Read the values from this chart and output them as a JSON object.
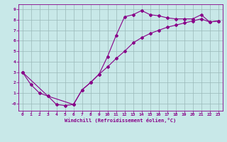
{
  "xlabel": "Windchill (Refroidissement éolien,°C)",
  "xlim": [
    -0.5,
    23.5
  ],
  "ylim": [
    -0.7,
    9.5
  ],
  "xticks": [
    0,
    1,
    2,
    3,
    4,
    5,
    6,
    7,
    8,
    9,
    10,
    11,
    12,
    13,
    14,
    15,
    16,
    17,
    18,
    19,
    20,
    21,
    22,
    23
  ],
  "yticks": [
    0,
    1,
    2,
    3,
    4,
    5,
    6,
    7,
    8,
    9
  ],
  "ytick_labels": [
    "-0",
    "1",
    "2",
    "3",
    "4",
    "5",
    "6",
    "7",
    "8",
    "9"
  ],
  "bg_color": "#c8e8e8",
  "line_color": "#880088",
  "curve1_x": [
    0,
    1,
    2,
    3,
    4,
    5,
    6,
    7,
    8,
    9,
    10,
    11,
    12,
    13,
    14,
    15,
    16,
    17,
    18,
    19,
    20,
    21,
    22,
    23
  ],
  "curve1_y": [
    3.0,
    1.8,
    1.0,
    0.7,
    -0.1,
    -0.2,
    -0.1,
    1.3,
    2.0,
    2.8,
    4.5,
    6.5,
    8.3,
    8.5,
    8.9,
    8.5,
    8.4,
    8.2,
    8.1,
    8.1,
    8.1,
    8.5,
    7.8,
    7.9
  ],
  "curve2_x": [
    0,
    3,
    6,
    7,
    8,
    9,
    10,
    11,
    12,
    13,
    14,
    15,
    16,
    17,
    18,
    19,
    20,
    21,
    22,
    23
  ],
  "curve2_y": [
    3.0,
    0.7,
    -0.1,
    1.3,
    2.0,
    2.8,
    3.5,
    4.3,
    5.0,
    5.8,
    6.3,
    6.7,
    7.0,
    7.3,
    7.5,
    7.7,
    7.9,
    8.1,
    7.8,
    7.9
  ],
  "grid_color": "#9ab8b8",
  "marker": "D",
  "markersize": 2.0,
  "linewidth": 0.8
}
